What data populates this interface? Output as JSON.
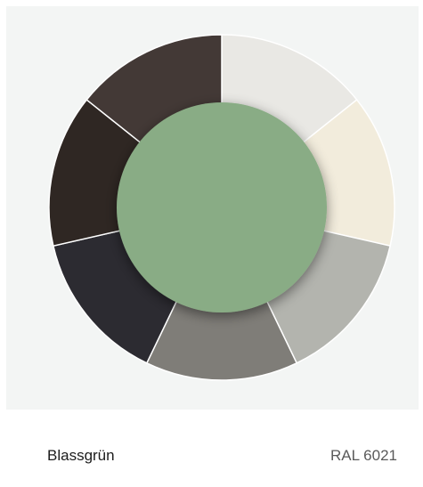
{
  "swatch": {
    "name": "Blassgrün",
    "code": "RAL 6021",
    "center_color": "#89ac85"
  },
  "ring": {
    "segments": [
      {
        "color": "#e9e8e4",
        "icon": "light-grey-swatch"
      },
      {
        "color": "#f2ecdc",
        "icon": "cream-swatch"
      },
      {
        "color": "#b3b4ae",
        "icon": "silver-grey-swatch"
      },
      {
        "color": "#7f7d78",
        "icon": "stone-grey-swatch"
      },
      {
        "color": "#2c2b31",
        "icon": "anthracite-swatch"
      },
      {
        "color": "#2f2723",
        "icon": "black-brown-swatch"
      },
      {
        "color": "#433936",
        "icon": "dark-brown-swatch"
      }
    ]
  }
}
